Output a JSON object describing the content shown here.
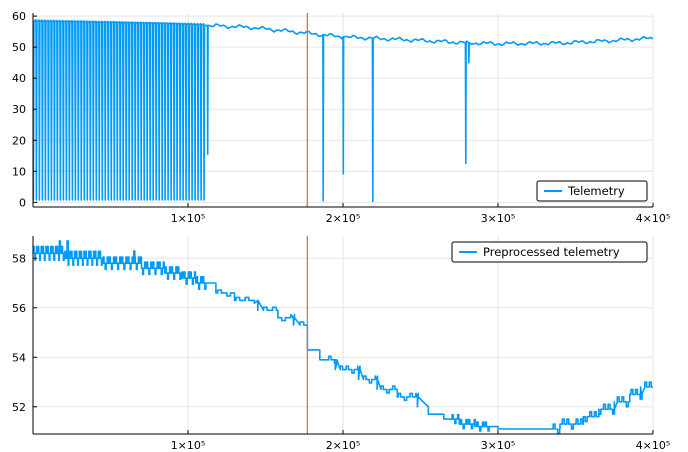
{
  "colors": {
    "series": "#009af9",
    "vline": "#e26f46",
    "grid": "#e6e6e6",
    "axis": "#000000"
  },
  "chart_data": [
    {
      "type": "line",
      "legend": "Telemetry",
      "legend_position": "bottom-right",
      "grid": true,
      "xlim": [
        0,
        400000
      ],
      "ylim": [
        -1.5,
        61
      ],
      "x_ticks": [
        100000,
        200000,
        300000,
        400000
      ],
      "x_tick_labels": [
        "1×10⁵",
        "2×10⁵",
        "3×10⁵",
        "4×10⁵"
      ],
      "y_ticks": [
        0,
        10,
        20,
        30,
        40,
        50,
        60
      ],
      "y_tick_labels": [
        "0",
        "10",
        "20",
        "30",
        "40",
        "50",
        "60"
      ],
      "vline_x": 177000,
      "baseline": {
        "x": [
          0,
          30000,
          60000,
          90000,
          112000,
          140000,
          177000,
          200000,
          240000,
          280000,
          300000,
          340000,
          370000,
          400000
        ],
        "y": [
          58.2,
          58.0,
          57.8,
          57.5,
          57.0,
          56.4,
          54.5,
          53.3,
          52.4,
          51.4,
          51.1,
          51.3,
          52.0,
          52.9
        ]
      },
      "oscillation": {
        "x_start": 0,
        "x_end": 112000,
        "cycles": 58,
        "low": 0.8,
        "high": 58.8
      },
      "spikes": [
        {
          "x": 112500,
          "low": 15.5
        },
        {
          "x": 187000,
          "low": 0.5
        },
        {
          "x": 200000,
          "low": 9.2
        },
        {
          "x": 219000,
          "low": 0.3
        },
        {
          "x": 279000,
          "low": 12.5
        },
        {
          "x": 281000,
          "low": 45.0
        }
      ]
    },
    {
      "type": "line",
      "legend": "Preprocessed telemetry",
      "legend_position": "top-right",
      "grid": true,
      "xlim": [
        0,
        400000
      ],
      "ylim": [
        50.9,
        58.9
      ],
      "x_ticks": [
        100000,
        200000,
        300000,
        400000
      ],
      "x_tick_labels": [
        "1×10⁵",
        "2×10⁵",
        "3×10⁵",
        "4×10⁵"
      ],
      "y_ticks": [
        52,
        54,
        56,
        58
      ],
      "y_tick_labels": [
        "52",
        "54",
        "56",
        "58"
      ],
      "vline_x": 177000,
      "steps": {
        "x": [
          0,
          20000,
          45000,
          70000,
          85000,
          95000,
          105000,
          118000,
          130000,
          145000,
          158000,
          168000,
          177000,
          185000,
          195000,
          210000,
          222000,
          235000,
          248000,
          255000,
          265000,
          275000,
          285000,
          300000,
          320000,
          340000,
          355000,
          365000,
          375000,
          385000,
          392000,
          400000
        ],
        "y": [
          58.2,
          58.0,
          57.8,
          57.6,
          57.4,
          57.2,
          57.0,
          56.6,
          56.3,
          55.9,
          55.6,
          55.3,
          54.3,
          53.9,
          53.5,
          53.1,
          52.7,
          52.4,
          52.0,
          51.7,
          51.5,
          51.3,
          51.2,
          51.1,
          51.1,
          51.3,
          51.6,
          51.9,
          52.2,
          52.5,
          52.8,
          52.8
        ]
      },
      "jitter": [
        {
          "x_start": 0,
          "x_end": 45000,
          "amp": 0.28,
          "count": 44
        },
        {
          "x_start": 45000,
          "x_end": 112000,
          "amp": 0.25,
          "count": 50
        },
        {
          "x_start": 118000,
          "x_end": 177000,
          "amp": 0.12,
          "count": 10
        },
        {
          "x_start": 190000,
          "x_end": 250000,
          "amp": 0.14,
          "count": 16
        },
        {
          "x_start": 270000,
          "x_end": 295000,
          "amp": 0.18,
          "count": 14
        },
        {
          "x_start": 335000,
          "x_end": 400000,
          "amp": 0.2,
          "count": 22
        }
      ],
      "peaks": [
        {
          "x": 17000,
          "y": 58.7
        },
        {
          "x": 22000,
          "y": 58.7
        },
        {
          "x": 65000,
          "y": 58.3
        }
      ]
    }
  ]
}
